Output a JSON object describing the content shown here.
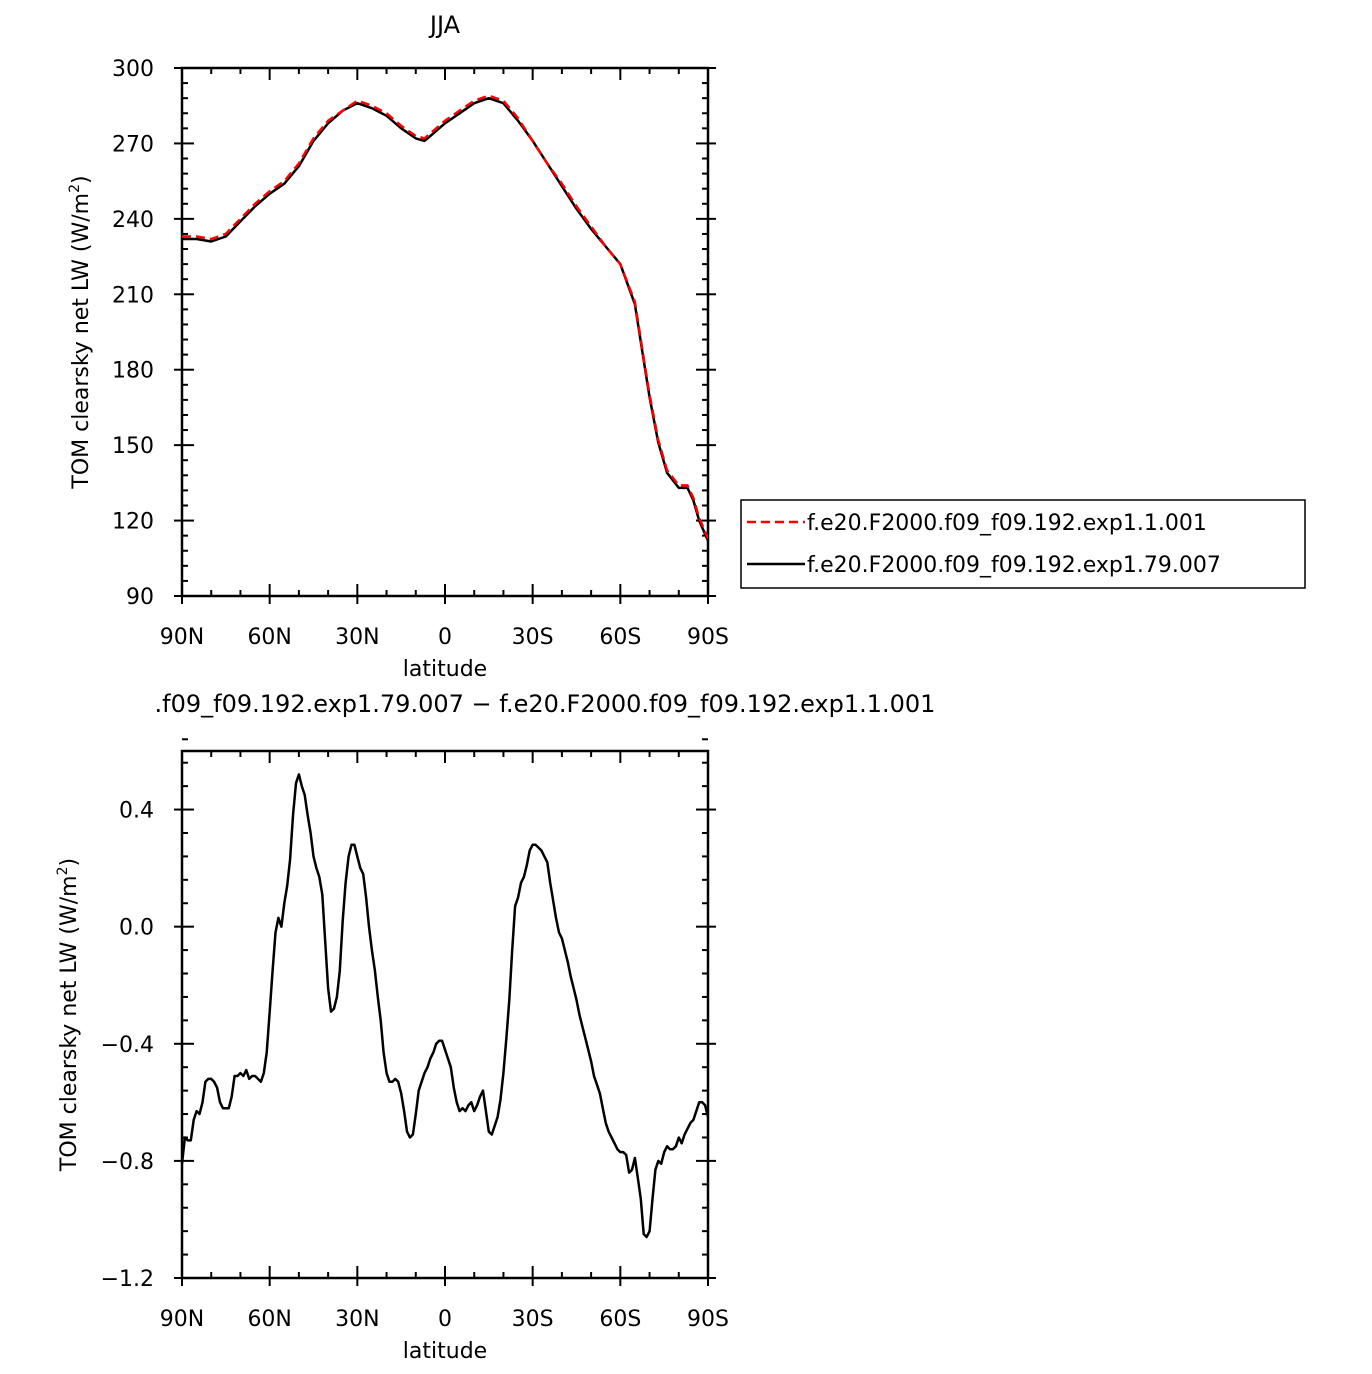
{
  "chart_data": [
    {
      "type": "line",
      "title": "JJA",
      "xlabel": "latitude",
      "ylabel": "TOM clearsky net LW (W/m",
      "ylabel_sup": "2",
      "ylabel_end": ")",
      "xlim": [
        90,
        -90
      ],
      "ylim": [
        90,
        300
      ],
      "x_ticks": [
        {
          "value": 90,
          "label": "90N"
        },
        {
          "value": 60,
          "label": "60N"
        },
        {
          "value": 30,
          "label": "30N"
        },
        {
          "value": 0,
          "label": "0"
        },
        {
          "value": -30,
          "label": "30S"
        },
        {
          "value": -60,
          "label": "60S"
        },
        {
          "value": -90,
          "label": "90S"
        }
      ],
      "y_ticks": [
        {
          "value": 90,
          "label": "90"
        },
        {
          "value": 120,
          "label": "120"
        },
        {
          "value": 150,
          "label": "150"
        },
        {
          "value": 180,
          "label": "180"
        },
        {
          "value": 210,
          "label": "210"
        },
        {
          "value": 240,
          "label": "240"
        },
        {
          "value": 270,
          "label": "270"
        },
        {
          "value": 300,
          "label": "300"
        }
      ],
      "legend": "right",
      "series": [
        {
          "name": "f.e20.F2000.f09_f09.192.exp1.1.001",
          "color": "#ff0000",
          "dash": "dashed",
          "x": [
            90,
            85,
            80,
            75,
            70,
            65,
            60,
            55,
            50,
            45,
            40,
            35,
            30,
            25,
            20,
            15,
            10,
            7,
            5,
            0,
            -5,
            -10,
            -15,
            -20,
            -25,
            -30,
            -35,
            -40,
            -45,
            -50,
            -55,
            -60,
            -65,
            -67,
            -70,
            -73,
            -76,
            -80,
            -83,
            -85,
            -87,
            -90
          ],
          "y": [
            233,
            233,
            232,
            234,
            240,
            246,
            251,
            255,
            262,
            272,
            279,
            283,
            287,
            285,
            282,
            277,
            273,
            272,
            274,
            279,
            283,
            287,
            289,
            287,
            280,
            271,
            262,
            254,
            245,
            237,
            229,
            222,
            207,
            192,
            170,
            152,
            140,
            134,
            134,
            129,
            121,
            113
          ]
        },
        {
          "name": "f.e20.F2000.f09_f09.192.exp1.79.007",
          "color": "#000000",
          "dash": "solid",
          "x": [
            90,
            85,
            80,
            75,
            70,
            65,
            60,
            55,
            50,
            45,
            40,
            35,
            30,
            25,
            20,
            15,
            10,
            7,
            5,
            0,
            -5,
            -10,
            -15,
            -20,
            -25,
            -30,
            -35,
            -40,
            -45,
            -50,
            -55,
            -60,
            -65,
            -67,
            -70,
            -73,
            -76,
            -80,
            -83,
            -85,
            -87,
            -90
          ],
          "y": [
            232,
            232,
            231,
            233,
            239,
            245,
            250,
            254,
            261,
            271,
            278,
            283,
            286,
            284,
            281,
            276,
            272,
            271,
            273,
            278,
            282,
            286,
            288,
            286,
            279,
            271,
            262,
            253,
            244,
            236,
            229,
            222,
            206,
            191,
            169,
            151,
            139,
            133,
            133,
            128,
            120,
            112
          ]
        }
      ]
    },
    {
      "type": "line",
      "title": ".f09_f09.192.exp1.79.007 − f.e20.F2000.f09_f09.192.exp1.1.001",
      "xlabel": "latitude",
      "ylabel": "TOM clearsky net LW (W/m",
      "ylabel_sup": "2",
      "ylabel_end": ")",
      "xlim": [
        90,
        -90
      ],
      "ylim": [
        -1.2,
        0.6
      ],
      "x_ticks": [
        {
          "value": 90,
          "label": "90N"
        },
        {
          "value": 60,
          "label": "60N"
        },
        {
          "value": 30,
          "label": "30N"
        },
        {
          "value": 0,
          "label": "0"
        },
        {
          "value": -30,
          "label": "30S"
        },
        {
          "value": -60,
          "label": "60S"
        },
        {
          "value": -90,
          "label": "90S"
        }
      ],
      "y_ticks": [
        {
          "value": -1.2,
          "label": "−1.2"
        },
        {
          "value": -0.8,
          "label": "−0.8"
        },
        {
          "value": -0.4,
          "label": "−0.4"
        },
        {
          "value": 0.0,
          "label": "0.0"
        },
        {
          "value": 0.4,
          "label": "0.4"
        }
      ],
      "series": [
        {
          "color": "#000000",
          "dash": "solid",
          "x": [
            90,
            89,
            88,
            87,
            86,
            85,
            84,
            83,
            82,
            81,
            80,
            79,
            78,
            77,
            76,
            75,
            74,
            73,
            72,
            71,
            70,
            69,
            68,
            67,
            66,
            65,
            64,
            63,
            62,
            61,
            60,
            59,
            58,
            57,
            56,
            55,
            54,
            53,
            52,
            51,
            50,
            49,
            48,
            47,
            46,
            45,
            44,
            43,
            42,
            41,
            40,
            39,
            38,
            37,
            36,
            35,
            34,
            33,
            32,
            31,
            30,
            29,
            28,
            27,
            26,
            25,
            24,
            23,
            22,
            21,
            20,
            19,
            18,
            17,
            16,
            15,
            14,
            13,
            12,
            11,
            10,
            9,
            8,
            7,
            6,
            5,
            4,
            3,
            2,
            1,
            0,
            -1,
            -2,
            -3,
            -4,
            -5,
            -6,
            -7,
            -8,
            -9,
            -10,
            -11,
            -12,
            -13,
            -14,
            -15,
            -16,
            -17,
            -18,
            -19,
            -20,
            -21,
            -22,
            -23,
            -24,
            -25,
            -26,
            -27,
            -28,
            -29,
            -30,
            -31,
            -32,
            -33,
            -34,
            -35,
            -36,
            -37,
            -38,
            -39,
            -40,
            -41,
            -42,
            -43,
            -44,
            -45,
            -46,
            -47,
            -48,
            -49,
            -50,
            -51,
            -52,
            -53,
            -54,
            -55,
            -56,
            -57,
            -58,
            -59,
            -60,
            -61,
            -62,
            -63,
            -64,
            -65,
            -66,
            -67,
            -68,
            -69,
            -70,
            -71,
            -72,
            -73,
            -74,
            -75,
            -76,
            -77,
            -78,
            -79,
            -80,
            -81,
            -82,
            -83,
            -84,
            -85,
            -86,
            -87,
            -88,
            -89,
            -90
          ],
          "y": [
            -0.81,
            -0.72,
            -0.73,
            -0.73,
            -0.66,
            -0.63,
            -0.64,
            -0.6,
            -0.53,
            -0.52,
            -0.52,
            -0.53,
            -0.55,
            -0.6,
            -0.62,
            -0.62,
            -0.62,
            -0.58,
            -0.51,
            -0.51,
            -0.5,
            -0.51,
            -0.49,
            -0.52,
            -0.51,
            -0.51,
            -0.52,
            -0.53,
            -0.5,
            -0.43,
            -0.29,
            -0.15,
            -0.02,
            0.03,
            0.0,
            0.08,
            0.14,
            0.23,
            0.38,
            0.49,
            0.52,
            0.48,
            0.45,
            0.38,
            0.32,
            0.24,
            0.2,
            0.17,
            0.11,
            -0.05,
            -0.21,
            -0.29,
            -0.28,
            -0.24,
            -0.15,
            0.02,
            0.15,
            0.24,
            0.28,
            0.28,
            0.24,
            0.2,
            0.18,
            0.1,
            0.0,
            -0.08,
            -0.15,
            -0.24,
            -0.32,
            -0.43,
            -0.5,
            -0.53,
            -0.53,
            -0.52,
            -0.53,
            -0.57,
            -0.63,
            -0.7,
            -0.72,
            -0.71,
            -0.64,
            -0.56,
            -0.53,
            -0.5,
            -0.48,
            -0.45,
            -0.43,
            -0.4,
            -0.39,
            -0.39,
            -0.42,
            -0.45,
            -0.48,
            -0.55,
            -0.6,
            -0.63,
            -0.62,
            -0.63,
            -0.61,
            -0.6,
            -0.63,
            -0.61,
            -0.58,
            -0.56,
            -0.63,
            -0.7,
            -0.71,
            -0.68,
            -0.65,
            -0.59,
            -0.5,
            -0.38,
            -0.25,
            -0.08,
            0.07,
            0.1,
            0.15,
            0.17,
            0.21,
            0.26,
            0.28,
            0.28,
            0.27,
            0.26,
            0.24,
            0.22,
            0.15,
            0.09,
            0.03,
            -0.02,
            -0.04,
            -0.08,
            -0.12,
            -0.17,
            -0.21,
            -0.25,
            -0.3,
            -0.34,
            -0.38,
            -0.42,
            -0.46,
            -0.51,
            -0.54,
            -0.57,
            -0.62,
            -0.67,
            -0.7,
            -0.72,
            -0.74,
            -0.76,
            -0.77,
            -0.77,
            -0.78,
            -0.84,
            -0.83,
            -0.79,
            -0.86,
            -0.93,
            -1.05,
            -1.06,
            -1.04,
            -0.93,
            -0.83,
            -0.8,
            -0.81,
            -0.77,
            -0.75,
            -0.76,
            -0.76,
            -0.75,
            -0.72,
            -0.74,
            -0.71,
            -0.69,
            -0.67,
            -0.66,
            -0.63,
            -0.6,
            -0.6,
            -0.61,
            -0.65
          ]
        }
      ]
    }
  ]
}
